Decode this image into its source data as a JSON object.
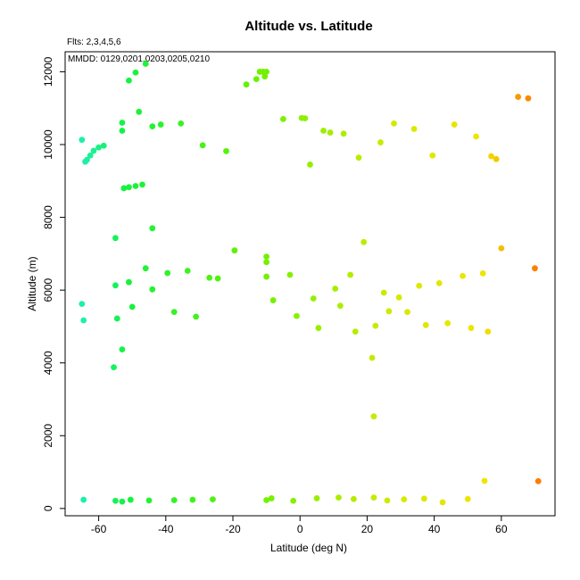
{
  "chart_data": {
    "type": "scatter",
    "title": "Altitude vs. Latitude",
    "annotations": [
      "Flts: 2,3,4,5,6",
      "MMDD: 0129,0201,0203,0205,0210"
    ],
    "xlabel": "Latitude (deg N)",
    "ylabel": "Altitude (m)",
    "xlim": [
      -70,
      76
    ],
    "ylim": [
      -200,
      12550
    ],
    "xticks": [
      -60,
      -40,
      -20,
      0,
      20,
      40,
      60
    ],
    "yticks": [
      0,
      2000,
      4000,
      6000,
      8000,
      10000,
      12000
    ],
    "grid": false,
    "color_encoding": "points colored by latitude: teal (south) through green and yellow to orange (north)",
    "points": [
      [
        -65,
        10130
      ],
      [
        -64,
        9530
      ],
      [
        -63.5,
        9580
      ],
      [
        -62.5,
        9700
      ],
      [
        -61.5,
        9830
      ],
      [
        -60,
        9920
      ],
      [
        -58.5,
        9970
      ],
      [
        -52.5,
        8800
      ],
      [
        -51,
        8830
      ],
      [
        -49,
        8860
      ],
      [
        -47,
        8900
      ],
      [
        -53,
        10600
      ],
      [
        -53,
        10380
      ],
      [
        -48,
        10900
      ],
      [
        -44,
        10500
      ],
      [
        -41.5,
        10550
      ],
      [
        -35.5,
        10580
      ],
      [
        -51,
        11760
      ],
      [
        -49,
        11980
      ],
      [
        -46,
        12220
      ],
      [
        -29,
        9980
      ],
      [
        -22,
        9820
      ],
      [
        -16,
        11650
      ],
      [
        -13,
        11800
      ],
      [
        -12,
        12000
      ],
      [
        -11,
        12000
      ],
      [
        -10.5,
        11870
      ],
      [
        -10,
        12000
      ],
      [
        -5,
        10700
      ],
      [
        0.5,
        10730
      ],
      [
        1.5,
        10720
      ],
      [
        3,
        9450
      ],
      [
        7,
        10380
      ],
      [
        9,
        10330
      ],
      [
        13,
        10300
      ],
      [
        17.5,
        9640
      ],
      [
        24,
        10060
      ],
      [
        28,
        10580
      ],
      [
        34,
        10430
      ],
      [
        39.5,
        9700
      ],
      [
        46,
        10550
      ],
      [
        52.5,
        10220
      ],
      [
        57,
        9680
      ],
      [
        58.5,
        9600
      ],
      [
        65,
        11310
      ],
      [
        68,
        11270
      ],
      [
        -55,
        7430
      ],
      [
        -44,
        7700
      ],
      [
        -55,
        6130
      ],
      [
        -51,
        6220
      ],
      [
        -46,
        6600
      ],
      [
        -44,
        6020
      ],
      [
        -39.5,
        6470
      ],
      [
        -33.5,
        6530
      ],
      [
        -27,
        6340
      ],
      [
        -24.5,
        6320
      ],
      [
        -19.5,
        7090
      ],
      [
        -10,
        6920
      ],
      [
        -10,
        6770
      ],
      [
        -10,
        6370
      ],
      [
        -3,
        6420
      ],
      [
        15,
        6420
      ],
      [
        19,
        7320
      ],
      [
        -65,
        5620
      ],
      [
        -64.5,
        5170
      ],
      [
        -54.5,
        5220
      ],
      [
        -50,
        5540
      ],
      [
        -37.5,
        5400
      ],
      [
        -31,
        5270
      ],
      [
        -8,
        5720
      ],
      [
        -1,
        5290
      ],
      [
        4,
        5770
      ],
      [
        5.5,
        4960
      ],
      [
        10.5,
        6040
      ],
      [
        12,
        5570
      ],
      [
        16.5,
        4860
      ],
      [
        22.5,
        5020
      ],
      [
        25,
        5930
      ],
      [
        26.5,
        5420
      ],
      [
        29.5,
        5800
      ],
      [
        32,
        5400
      ],
      [
        35.5,
        6120
      ],
      [
        37.5,
        5040
      ],
      [
        41.5,
        6190
      ],
      [
        44,
        5090
      ],
      [
        48.5,
        6390
      ],
      [
        51,
        4960
      ],
      [
        54.5,
        6460
      ],
      [
        56,
        4860
      ],
      [
        60,
        7150
      ],
      [
        70,
        6600
      ],
      [
        -53,
        4370
      ],
      [
        -55.5,
        3880
      ],
      [
        21.5,
        4140
      ],
      [
        22,
        2530
      ],
      [
        -64.5,
        240
      ],
      [
        -55,
        210
      ],
      [
        -53,
        190
      ],
      [
        -50.5,
        240
      ],
      [
        -45,
        220
      ],
      [
        -37.5,
        230
      ],
      [
        -32,
        240
      ],
      [
        -26,
        250
      ],
      [
        -10,
        230
      ],
      [
        -8.5,
        280
      ],
      [
        -2,
        210
      ],
      [
        5,
        280
      ],
      [
        11.5,
        300
      ],
      [
        16,
        260
      ],
      [
        22,
        300
      ],
      [
        26,
        220
      ],
      [
        31,
        250
      ],
      [
        37,
        270
      ],
      [
        42.5,
        170
      ],
      [
        50,
        260
      ],
      [
        55,
        760
      ],
      [
        71,
        750
      ]
    ]
  }
}
